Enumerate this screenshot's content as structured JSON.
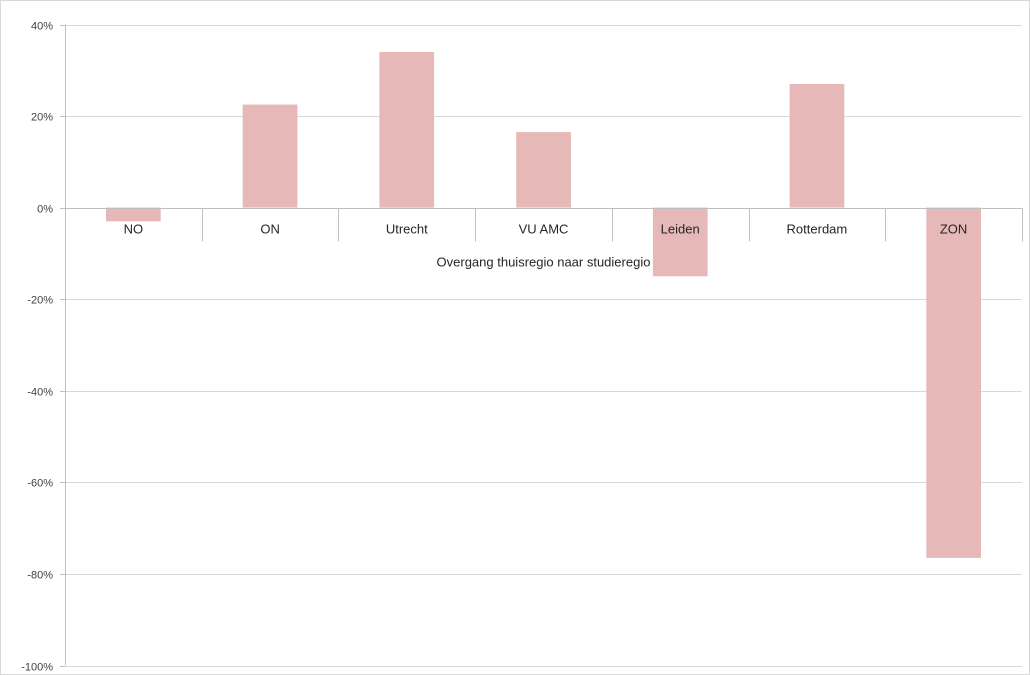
{
  "chart_data": {
    "type": "bar",
    "title": "",
    "xlabel": "Overgang thuisregio naar studieregio",
    "ylabel": "",
    "categories": [
      "NO",
      "ON",
      "Utrecht",
      "VU AMC",
      "Leiden",
      "Rotterdam",
      "ZON"
    ],
    "values": [
      -3,
      22.5,
      34,
      16.5,
      -15,
      27,
      -76.5
    ],
    "ylim": [
      -100,
      40
    ],
    "yticks": [
      40,
      20,
      0,
      -20,
      -40,
      -60,
      -80,
      -100
    ],
    "ytick_labels": [
      "40%",
      "20%",
      "0%",
      "-20%",
      "-40%",
      "-60%",
      "-80%",
      "-100%"
    ],
    "grid": true,
    "legend": "none",
    "colors": {
      "bar": "#e6b9b8",
      "grid": "#d9d9d9",
      "axis": "#bfbfbf",
      "text": "#262626"
    }
  }
}
